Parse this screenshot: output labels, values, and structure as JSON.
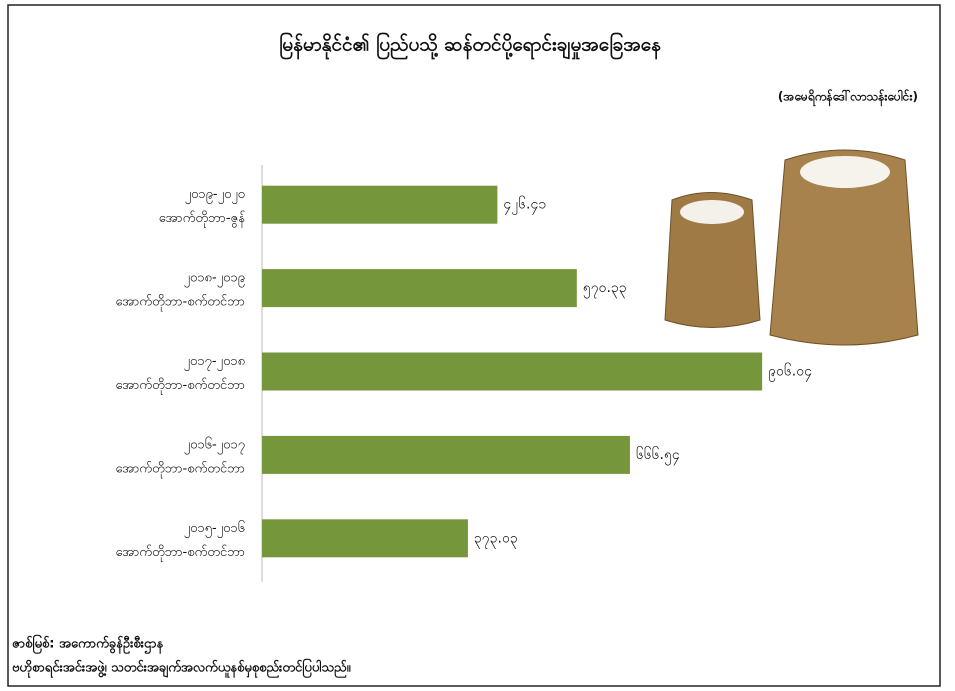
{
  "chart_data": {
    "type": "barh",
    "title": "မြန်မာနိုင်ငံ၏ ပြည်ပသို့ ဆန်တင်ပို့ရောင်းချမှုအခြေအနေ",
    "subtitle": "(အမေရိကန်ဒေါ်လာသန်းပေါင်း)",
    "categories": [
      [
        "၂၀၁၉-၂၀၂၀",
        "အောက်တိုဘာ-ဇွန်"
      ],
      [
        "၂၀၁၈-၂၀၁၉",
        "အောက်တိုဘာ-စက်တင်ဘာ"
      ],
      [
        "၂၀၁၇-၂၀၁၈",
        "အောက်တိုဘာ-စက်တင်ဘာ"
      ],
      [
        "၂၀၁၆-၂၀၁၇",
        "အောက်တိုဘာ-စက်တင်ဘာ"
      ],
      [
        "၂၀၁၅-၂၀၁၆",
        "အောက်တိုဘာ-စက်တင်ဘာ"
      ]
    ],
    "values": [
      426.41,
      570.33,
      906.04,
      666.54,
      373.03
    ],
    "value_labels": [
      "၄၂၆.၄၁",
      "၅၇၀.၃၃",
      "၉၀၆.၀၄",
      "၆၆၆.၅၄",
      "၃၇၃.၀၃"
    ],
    "color": "#76963c",
    "xlim": [
      0,
      1000
    ],
    "source": [
      "ဇာစ်မြစ်: အကောက်ခွန်ဦးစီးဌာန",
      "ဗဟိုစာရင်းအင်းအဖွဲ့၊ သတင်းအချက်အလက်ယူနစ်မှစုစည်းတင်ပြပါသည်။"
    ]
  }
}
